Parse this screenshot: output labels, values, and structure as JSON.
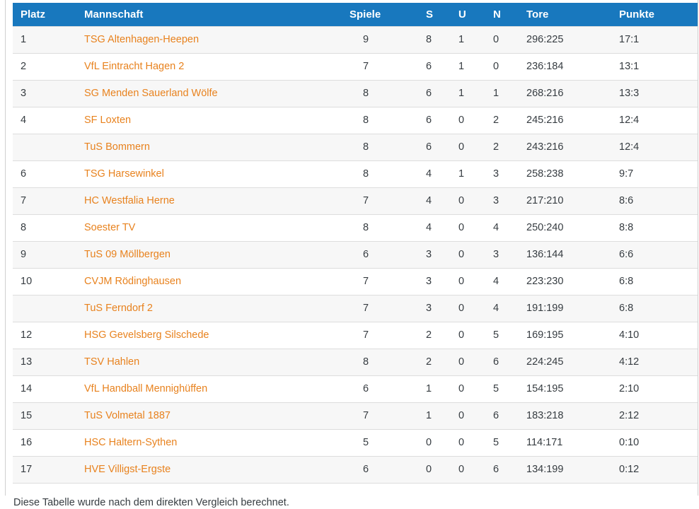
{
  "colors": {
    "header_bg": "#1878BE",
    "link": "#E8821E",
    "text": "#363C41",
    "stripe": "#F7F7F7",
    "border_row": "#DDDDDD",
    "border_outer": "#D0D0D0"
  },
  "table": {
    "columns": [
      {
        "key": "platz",
        "label": "Platz"
      },
      {
        "key": "team",
        "label": "Mannschaft"
      },
      {
        "key": "spiele",
        "label": "Spiele"
      },
      {
        "key": "s",
        "label": "S"
      },
      {
        "key": "u",
        "label": "U"
      },
      {
        "key": "n",
        "label": "N"
      },
      {
        "key": "tore",
        "label": "Tore"
      },
      {
        "key": "punkte",
        "label": "Punkte"
      }
    ],
    "rows": [
      {
        "platz": "1",
        "team": "TSG Altenhagen-Heepen",
        "spiele": "9",
        "s": "8",
        "u": "1",
        "n": "0",
        "tore": "296:225",
        "punkte": "17:1"
      },
      {
        "platz": "2",
        "team": "VfL Eintracht Hagen 2",
        "spiele": "7",
        "s": "6",
        "u": "1",
        "n": "0",
        "tore": "236:184",
        "punkte": "13:1"
      },
      {
        "platz": "3",
        "team": "SG Menden Sauerland Wölfe",
        "spiele": "8",
        "s": "6",
        "u": "1",
        "n": "1",
        "tore": "268:216",
        "punkte": "13:3"
      },
      {
        "platz": "4",
        "team": "SF Loxten",
        "spiele": "8",
        "s": "6",
        "u": "0",
        "n": "2",
        "tore": "245:216",
        "punkte": "12:4"
      },
      {
        "platz": "",
        "team": "TuS Bommern",
        "spiele": "8",
        "s": "6",
        "u": "0",
        "n": "2",
        "tore": "243:216",
        "punkte": "12:4"
      },
      {
        "platz": "6",
        "team": "TSG Harsewinkel",
        "spiele": "8",
        "s": "4",
        "u": "1",
        "n": "3",
        "tore": "258:238",
        "punkte": "9:7"
      },
      {
        "platz": "7",
        "team": "HC Westfalia Herne",
        "spiele": "7",
        "s": "4",
        "u": "0",
        "n": "3",
        "tore": "217:210",
        "punkte": "8:6"
      },
      {
        "platz": "8",
        "team": "Soester TV",
        "spiele": "8",
        "s": "4",
        "u": "0",
        "n": "4",
        "tore": "250:240",
        "punkte": "8:8"
      },
      {
        "platz": "9",
        "team": "TuS 09 Möllbergen",
        "spiele": "6",
        "s": "3",
        "u": "0",
        "n": "3",
        "tore": "136:144",
        "punkte": "6:6"
      },
      {
        "platz": "10",
        "team": "CVJM Rödinghausen",
        "spiele": "7",
        "s": "3",
        "u": "0",
        "n": "4",
        "tore": "223:230",
        "punkte": "6:8"
      },
      {
        "platz": "",
        "team": "TuS Ferndorf 2",
        "spiele": "7",
        "s": "3",
        "u": "0",
        "n": "4",
        "tore": "191:199",
        "punkte": "6:8"
      },
      {
        "platz": "12",
        "team": "HSG Gevelsberg Silschede",
        "spiele": "7",
        "s": "2",
        "u": "0",
        "n": "5",
        "tore": "169:195",
        "punkte": "4:10"
      },
      {
        "platz": "13",
        "team": "TSV Hahlen",
        "spiele": "8",
        "s": "2",
        "u": "0",
        "n": "6",
        "tore": "224:245",
        "punkte": "4:12"
      },
      {
        "platz": "14",
        "team": "VfL Handball Mennighüffen",
        "spiele": "6",
        "s": "1",
        "u": "0",
        "n": "5",
        "tore": "154:195",
        "punkte": "2:10"
      },
      {
        "platz": "15",
        "team": "TuS Volmetal 1887",
        "spiele": "7",
        "s": "1",
        "u": "0",
        "n": "6",
        "tore": "183:218",
        "punkte": "2:12"
      },
      {
        "platz": "16",
        "team": "HSC Haltern-Sythen",
        "spiele": "5",
        "s": "0",
        "u": "0",
        "n": "5",
        "tore": "114:171",
        "punkte": "0:10"
      },
      {
        "platz": "17",
        "team": "HVE Villigst-Ergste",
        "spiele": "6",
        "s": "0",
        "u": "0",
        "n": "6",
        "tore": "134:199",
        "punkte": "0:12"
      }
    ]
  },
  "footer": {
    "note": "Diese Tabelle wurde nach dem direkten Vergleich berechnet."
  }
}
